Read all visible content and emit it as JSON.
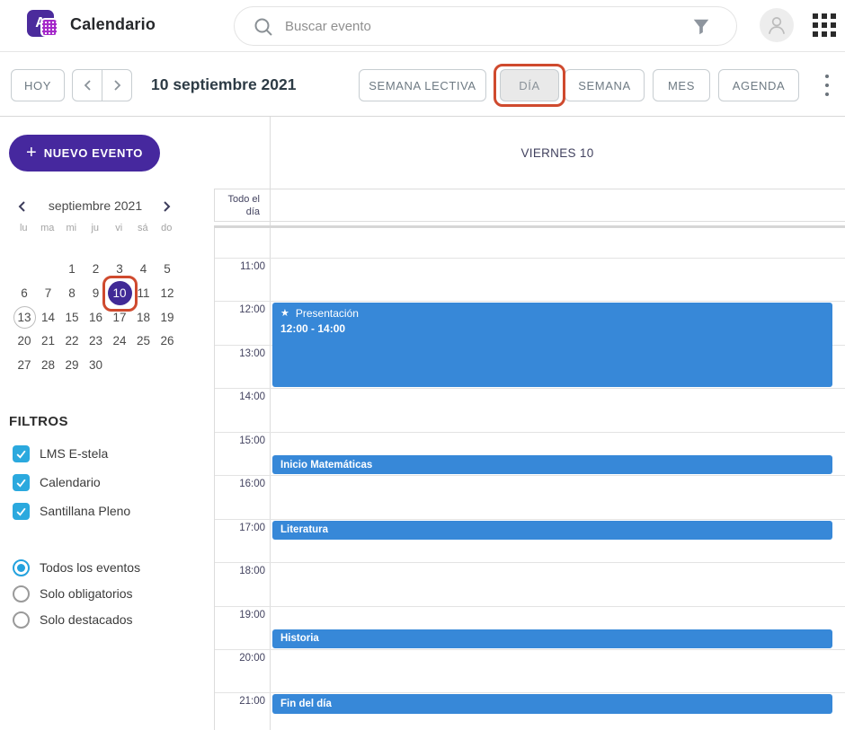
{
  "header": {
    "app_title": "Calendario",
    "search_placeholder": "Buscar evento"
  },
  "toolbar": {
    "today_label": "HOY",
    "date_title": "10 septiembre 2021",
    "view_buttons": [
      {
        "label": "SEMANA LECTIVA",
        "active": false
      },
      {
        "label": "DÍA",
        "active": true,
        "annotated": true
      },
      {
        "label": "SEMANA",
        "active": false
      },
      {
        "label": "MES",
        "active": false
      },
      {
        "label": "AGENDA",
        "active": false
      }
    ]
  },
  "sidebar": {
    "new_event_label": "NUEVO EVENTO",
    "mini_calendar": {
      "title": "septiembre 2021",
      "weekdays": [
        "lu",
        "ma",
        "mi",
        "ju",
        "vi",
        "sá",
        "do"
      ],
      "weeks": [
        [
          "",
          "",
          "1",
          "2",
          "3",
          "4",
          "5"
        ],
        [
          "6",
          "7",
          "8",
          "9",
          "10",
          "11",
          "12"
        ],
        [
          "13",
          "14",
          "15",
          "16",
          "17",
          "18",
          "19"
        ],
        [
          "20",
          "21",
          "22",
          "23",
          "24",
          "25",
          "26"
        ],
        [
          "27",
          "28",
          "29",
          "30",
          "",
          "",
          ""
        ]
      ],
      "selected_day": "10",
      "today_day": "13"
    },
    "filters": {
      "heading": "FILTROS",
      "checkboxes": [
        {
          "label": "LMS E-stela",
          "checked": true
        },
        {
          "label": "Calendario",
          "checked": true
        },
        {
          "label": "Santillana Pleno",
          "checked": true
        }
      ],
      "radios": [
        {
          "label": "Todos los eventos",
          "selected": true
        },
        {
          "label": "Solo obligatorios",
          "selected": false
        },
        {
          "label": "Solo destacados",
          "selected": false
        }
      ]
    }
  },
  "calendar": {
    "day_header": "VIERNES 10",
    "all_day_label": "Todo el día",
    "hours": [
      "11:00",
      "12:00",
      "13:00",
      "14:00",
      "15:00",
      "16:00",
      "17:00",
      "18:00",
      "19:00",
      "20:00",
      "21:00"
    ],
    "events": [
      {
        "title": "Presentación",
        "start": "12:00",
        "end": "14:00",
        "time_label": "12:00 - 14:00",
        "starred": true,
        "size": "large"
      },
      {
        "title": "Inicio Matemáticas",
        "start": "15:30",
        "end": "16:00",
        "size": "small"
      },
      {
        "title": "Literatura",
        "start": "17:00",
        "end": "17:30",
        "size": "small"
      },
      {
        "title": "Historia",
        "start": "19:30",
        "end": "20:00",
        "size": "small"
      },
      {
        "title": "Fin del día",
        "start": "21:00",
        "end": "21:30",
        "size": "small"
      }
    ]
  },
  "colors": {
    "accent_purple": "#46289e",
    "selected_day_purple": "#412a96",
    "event_blue": "#3788d8",
    "checkbox_blue": "#2ba9de",
    "radio_blue": "#24a2de",
    "annotation_red": "#cf4a2e"
  }
}
